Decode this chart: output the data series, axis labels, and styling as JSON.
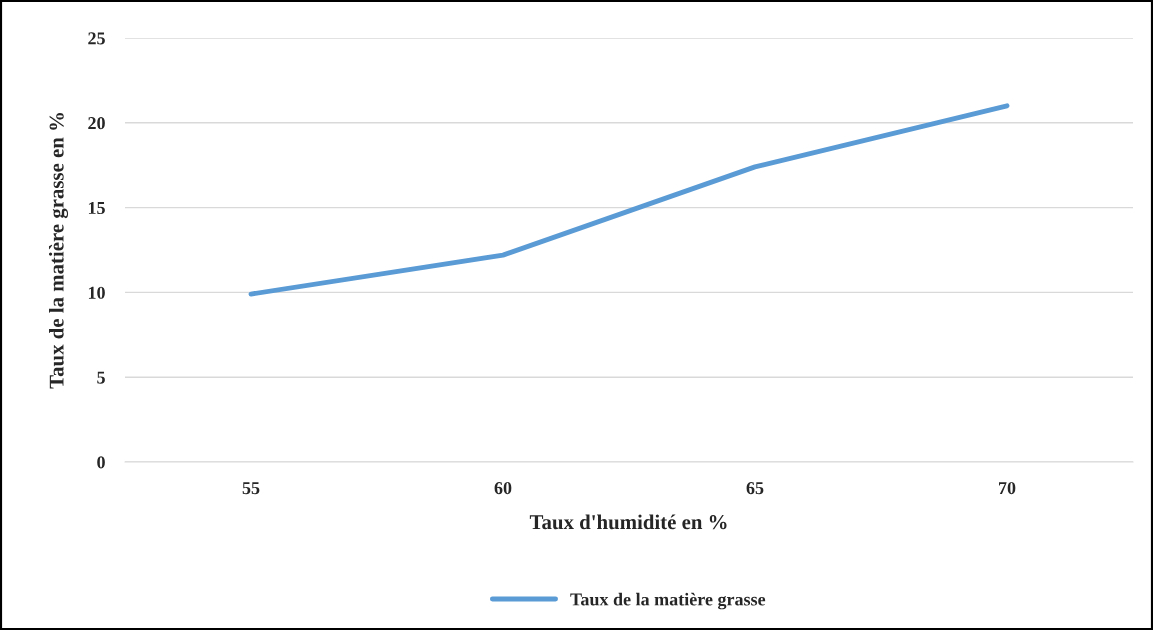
{
  "chart_data": {
    "type": "line",
    "xlabel": "Taux d'humidité en %",
    "ylabel": "Taux de la matière grasse en %",
    "categories": [
      "55",
      "60",
      "65",
      "70"
    ],
    "series": [
      {
        "name": "Taux de la matière grasse",
        "color": "#5b9bd5",
        "values": [
          9.9,
          12.2,
          17.4,
          21.0
        ]
      }
    ],
    "ylim": [
      0,
      25
    ],
    "yticks": [
      0,
      5,
      10,
      15,
      20,
      25
    ],
    "grid": "y",
    "legend": "bottom",
    "marker": "none",
    "line_style": "solid"
  }
}
